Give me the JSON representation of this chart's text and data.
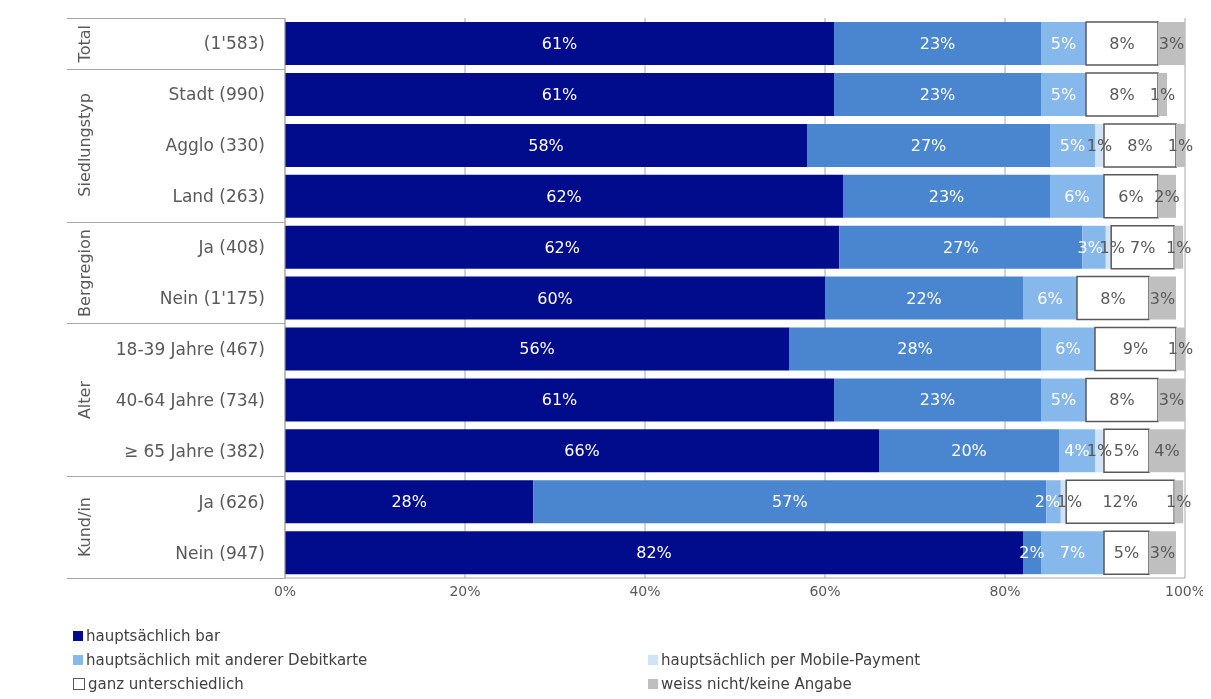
{
  "chart_data": {
    "type": "bar",
    "orientation": "horizontal",
    "stacked": true,
    "categories": [
      "(1'583)",
      "Stadt (990)",
      "Agglo (330)",
      "Land (263)",
      "Ja (408)",
      "Nein (1'175)",
      "18-39 Jahre (467)",
      "40-64 Jahre (734)",
      "≥ 65 Jahre (382)",
      "Ja (626)",
      "Nein (947)"
    ],
    "annotations": [
      "Total",
      "Siedlungstyp",
      "Bergregion",
      "Alter",
      "Kund/in"
    ],
    "series": [
      {
        "name": "hauptsächlich bar",
        "color": "#000c8c",
        "values": [
          61,
          61,
          58,
          62,
          61.6,
          60,
          56,
          61,
          66,
          27.6,
          82
        ],
        "value_labels": [
          "61%",
          "61%",
          "58%",
          "62%",
          "62%",
          "60%",
          "56%",
          "61%",
          "66%",
          "28%",
          "82%"
        ]
      },
      {
        "color": "#4a86d0",
        "values": [
          23,
          23,
          27,
          23,
          27,
          22,
          28,
          23,
          20,
          57,
          2
        ],
        "value_labels": [
          "23%",
          "23%",
          "27%",
          "23%",
          "27%",
          "22%",
          "28%",
          "23%",
          "20%",
          "57%",
          "2%"
        ]
      },
      {
        "name": "hauptsächlich mit anderer Debitkarte",
        "color": "#87b8ec",
        "values": [
          5,
          5,
          5,
          6,
          2.6,
          6,
          6,
          5,
          4,
          1.6,
          7
        ],
        "value_labels": [
          "5%",
          "5%",
          "5%",
          "6%",
          "3%",
          "6%",
          "6%",
          "5%",
          "4%",
          "2%",
          "7%"
        ]
      },
      {
        "name": "hauptsächlich per Mobile-Payment",
        "color": "#d0e3f7",
        "values": [
          0,
          0,
          1,
          0,
          0.6,
          0,
          0,
          0,
          1,
          0.6,
          0
        ],
        "value_labels": [
          null,
          null,
          "1%",
          null,
          "1%",
          null,
          null,
          null,
          "1%",
          "1%",
          null
        ]
      },
      {
        "name": "ganz unterschiedlich",
        "color": "#ffffff",
        "values": [
          8,
          8,
          8,
          6,
          7,
          8,
          9,
          8,
          5,
          12,
          5
        ],
        "value_labels": [
          "8%",
          "8%",
          "8%",
          "6%",
          "7%",
          "8%",
          "9%",
          "8%",
          "5%",
          "12%",
          "5%"
        ]
      },
      {
        "name": "weiss nicht/keine Angabe",
        "color": "#bfbfbf",
        "values": [
          3,
          1,
          1,
          2,
          1,
          3,
          1,
          3,
          4,
          1,
          3
        ],
        "value_labels": [
          "3%",
          "1%",
          "1%",
          "2%",
          "1%",
          "3%",
          "1%",
          "3%",
          "4%",
          "1%",
          "3%"
        ]
      }
    ],
    "xlim": [
      0,
      100
    ],
    "xticks": [
      {
        "value": 0,
        "label": "0%"
      },
      {
        "value": 20,
        "label": "20%"
      },
      {
        "value": 40,
        "label": "40%"
      },
      {
        "value": 60,
        "label": "60%"
      },
      {
        "value": 80,
        "label": "80%"
      },
      {
        "value": 100,
        "label": "100%"
      }
    ],
    "grid": "x",
    "legend": "bottom"
  }
}
